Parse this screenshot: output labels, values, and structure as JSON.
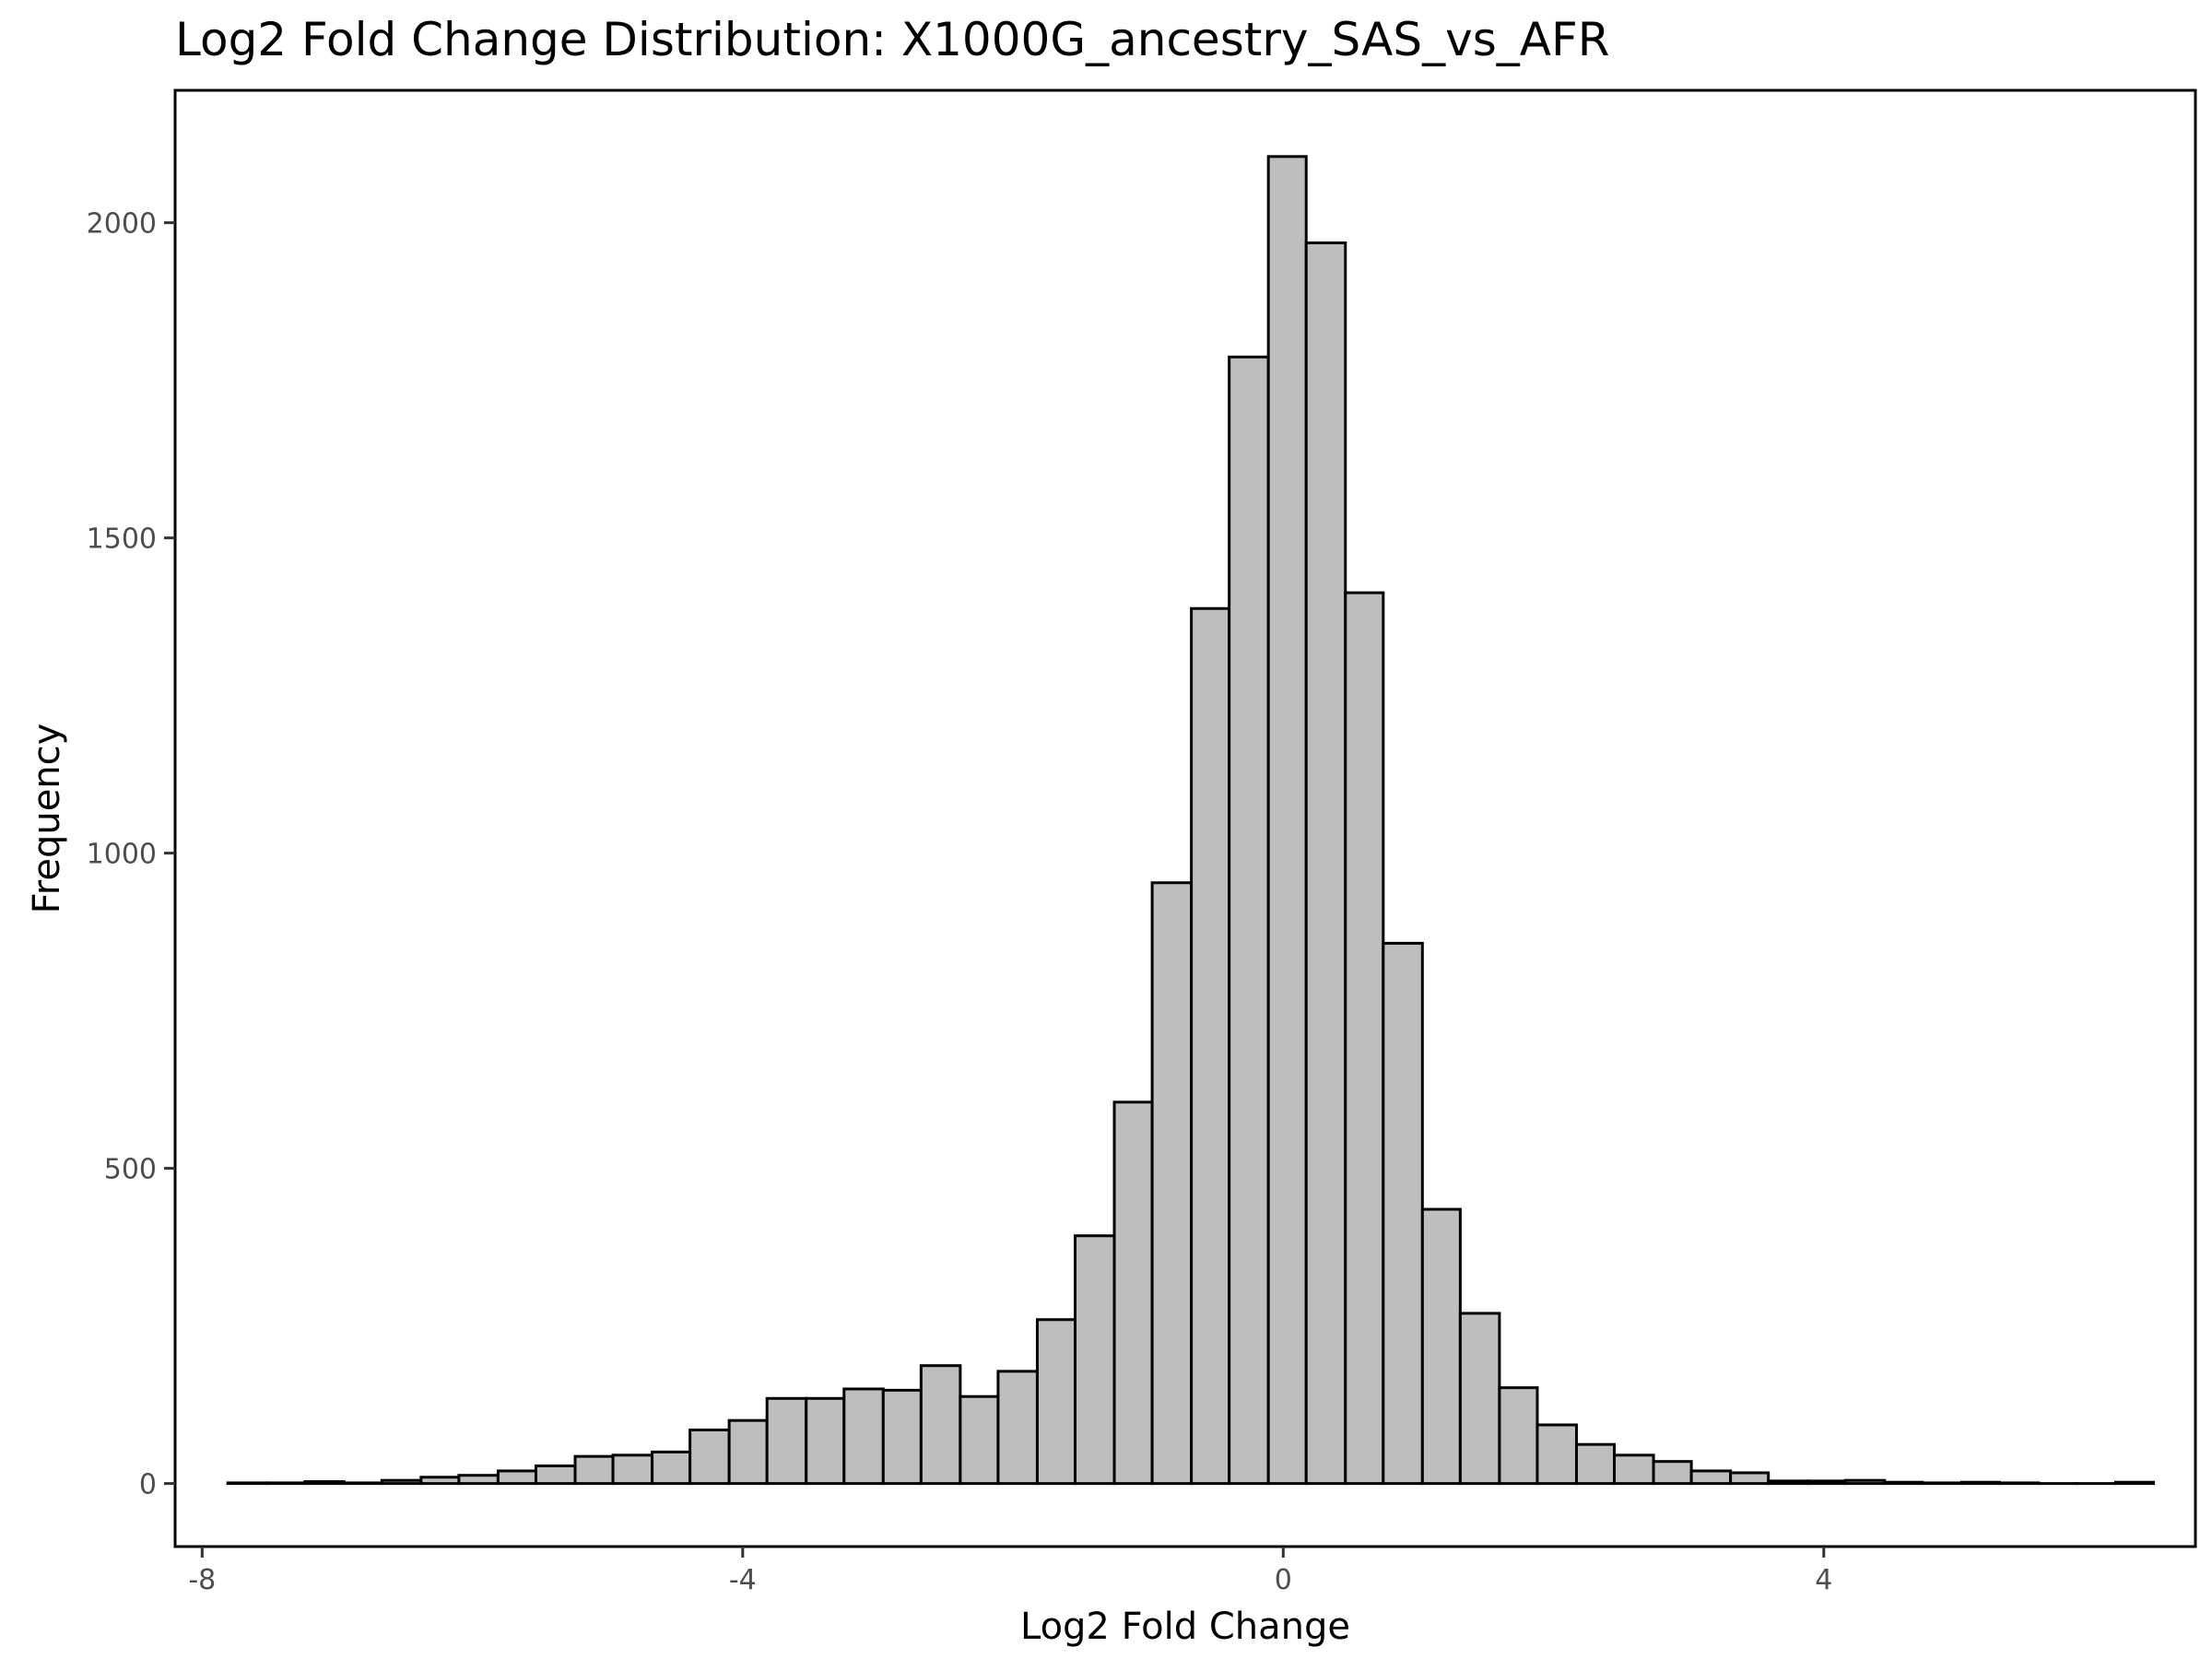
{
  "chart_data": {
    "type": "bar",
    "title": "Log2 Fold Change Distribution: X1000G_ancestry_SAS_vs_AFR",
    "xlabel": "Log2 Fold Change",
    "ylabel": "Frequency",
    "xlim": [
      -8.2,
      6.75
    ],
    "ylim": [
      -100,
      2210
    ],
    "xticks": [
      -8,
      -4,
      0,
      4
    ],
    "xtick_labels": [
      "-8",
      "-4",
      "0",
      "4"
    ],
    "yticks": [
      0,
      500,
      1000,
      1500,
      2000
    ],
    "ytick_labels": [
      "0",
      "500",
      "1000",
      "1500",
      "2000"
    ],
    "grid": false,
    "bar_fill": "#bebebe",
    "bar_outline": "#000000",
    "bins": [
      {
        "start": -7.81,
        "end": -7.52,
        "count": 1
      },
      {
        "start": -7.52,
        "end": -7.24,
        "count": 1
      },
      {
        "start": -7.24,
        "end": -6.95,
        "count": 3
      },
      {
        "start": -6.95,
        "end": -6.67,
        "count": 1
      },
      {
        "start": -6.67,
        "end": -6.38,
        "count": 5
      },
      {
        "start": -6.38,
        "end": -6.1,
        "count": 10
      },
      {
        "start": -6.1,
        "end": -5.81,
        "count": 13
      },
      {
        "start": -5.81,
        "end": -5.53,
        "count": 20
      },
      {
        "start": -5.53,
        "end": -5.24,
        "count": 28
      },
      {
        "start": -5.24,
        "end": -4.96,
        "count": 43
      },
      {
        "start": -4.96,
        "end": -4.67,
        "count": 45
      },
      {
        "start": -4.67,
        "end": -4.39,
        "count": 50
      },
      {
        "start": -4.39,
        "end": -4.1,
        "count": 85
      },
      {
        "start": -4.1,
        "end": -3.82,
        "count": 100
      },
      {
        "start": -3.82,
        "end": -3.53,
        "count": 135
      },
      {
        "start": -3.53,
        "end": -3.25,
        "count": 135
      },
      {
        "start": -3.25,
        "end": -2.96,
        "count": 150
      },
      {
        "start": -2.96,
        "end": -2.68,
        "count": 148
      },
      {
        "start": -2.68,
        "end": -2.39,
        "count": 187
      },
      {
        "start": -2.39,
        "end": -2.11,
        "count": 138
      },
      {
        "start": -2.11,
        "end": -1.82,
        "count": 178
      },
      {
        "start": -1.82,
        "end": -1.54,
        "count": 260
      },
      {
        "start": -1.54,
        "end": -1.25,
        "count": 393
      },
      {
        "start": -1.25,
        "end": -0.97,
        "count": 605
      },
      {
        "start": -0.97,
        "end": -0.68,
        "count": 953
      },
      {
        "start": -0.68,
        "end": -0.4,
        "count": 1388
      },
      {
        "start": -0.4,
        "end": -0.11,
        "count": 1787
      },
      {
        "start": -0.11,
        "end": 0.17,
        "count": 2105
      },
      {
        "start": 0.17,
        "end": 0.46,
        "count": 1968
      },
      {
        "start": 0.46,
        "end": 0.74,
        "count": 1413
      },
      {
        "start": 0.74,
        "end": 1.03,
        "count": 857
      },
      {
        "start": 1.03,
        "end": 1.31,
        "count": 435
      },
      {
        "start": 1.31,
        "end": 1.6,
        "count": 270
      },
      {
        "start": 1.6,
        "end": 1.88,
        "count": 152
      },
      {
        "start": 1.88,
        "end": 2.17,
        "count": 93
      },
      {
        "start": 2.17,
        "end": 2.45,
        "count": 62
      },
      {
        "start": 2.45,
        "end": 2.74,
        "count": 45
      },
      {
        "start": 2.74,
        "end": 3.02,
        "count": 35
      },
      {
        "start": 3.02,
        "end": 3.31,
        "count": 20
      },
      {
        "start": 3.31,
        "end": 3.59,
        "count": 17
      },
      {
        "start": 3.59,
        "end": 3.88,
        "count": 4
      },
      {
        "start": 3.88,
        "end": 4.16,
        "count": 4
      },
      {
        "start": 4.16,
        "end": 4.45,
        "count": 5
      },
      {
        "start": 4.45,
        "end": 4.73,
        "count": 2
      },
      {
        "start": 4.73,
        "end": 5.02,
        "count": 1
      },
      {
        "start": 5.02,
        "end": 5.3,
        "count": 2
      },
      {
        "start": 5.3,
        "end": 5.59,
        "count": 1
      },
      {
        "start": 5.59,
        "end": 5.87,
        "count": 0
      },
      {
        "start": 5.87,
        "end": 6.16,
        "count": 0
      },
      {
        "start": 6.16,
        "end": 6.44,
        "count": 2
      }
    ]
  }
}
